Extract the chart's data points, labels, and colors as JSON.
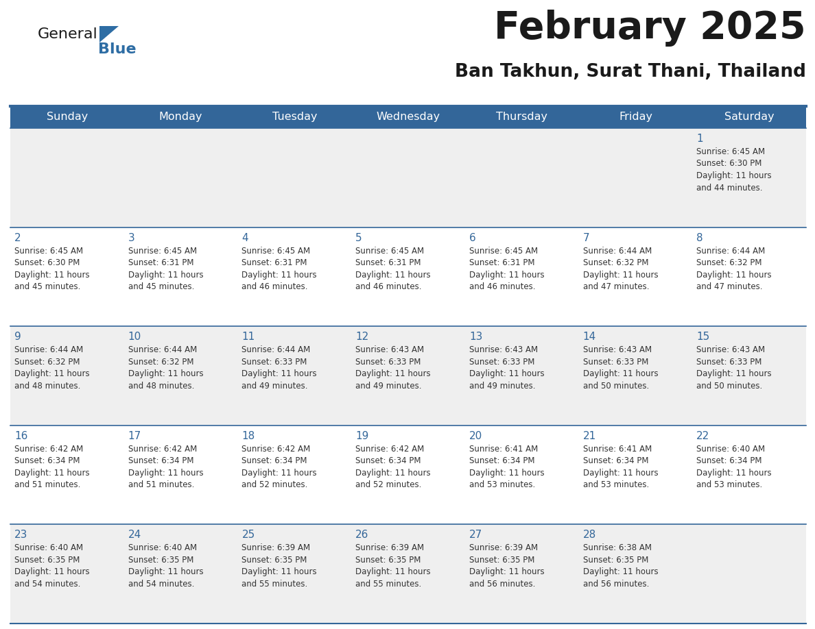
{
  "title": "February 2025",
  "subtitle": "Ban Takhun, Surat Thani, Thailand",
  "header_bg": "#336699",
  "header_text_color": "#FFFFFF",
  "cell_bg_odd": "#EFEFEF",
  "cell_bg_even": "#FFFFFF",
  "title_color": "#1a1a1a",
  "subtitle_color": "#1a1a1a",
  "date_num_color": "#336699",
  "info_text_color": "#333333",
  "grid_line_color": "#336699",
  "days_of_week": [
    "Sunday",
    "Monday",
    "Tuesday",
    "Wednesday",
    "Thursday",
    "Friday",
    "Saturday"
  ],
  "calendar": [
    [
      null,
      null,
      null,
      null,
      null,
      null,
      1
    ],
    [
      2,
      3,
      4,
      5,
      6,
      7,
      8
    ],
    [
      9,
      10,
      11,
      12,
      13,
      14,
      15
    ],
    [
      16,
      17,
      18,
      19,
      20,
      21,
      22
    ],
    [
      23,
      24,
      25,
      26,
      27,
      28,
      null
    ]
  ],
  "cell_data": {
    "1": {
      "sunrise": "6:45 AM",
      "sunset": "6:30 PM",
      "daylight": "11 hours and 44 minutes."
    },
    "2": {
      "sunrise": "6:45 AM",
      "sunset": "6:30 PM",
      "daylight": "11 hours and 45 minutes."
    },
    "3": {
      "sunrise": "6:45 AM",
      "sunset": "6:31 PM",
      "daylight": "11 hours and 45 minutes."
    },
    "4": {
      "sunrise": "6:45 AM",
      "sunset": "6:31 PM",
      "daylight": "11 hours and 46 minutes."
    },
    "5": {
      "sunrise": "6:45 AM",
      "sunset": "6:31 PM",
      "daylight": "11 hours and 46 minutes."
    },
    "6": {
      "sunrise": "6:45 AM",
      "sunset": "6:31 PM",
      "daylight": "11 hours and 46 minutes."
    },
    "7": {
      "sunrise": "6:44 AM",
      "sunset": "6:32 PM",
      "daylight": "11 hours and 47 minutes."
    },
    "8": {
      "sunrise": "6:44 AM",
      "sunset": "6:32 PM",
      "daylight": "11 hours and 47 minutes."
    },
    "9": {
      "sunrise": "6:44 AM",
      "sunset": "6:32 PM",
      "daylight": "11 hours and 48 minutes."
    },
    "10": {
      "sunrise": "6:44 AM",
      "sunset": "6:32 PM",
      "daylight": "11 hours and 48 minutes."
    },
    "11": {
      "sunrise": "6:44 AM",
      "sunset": "6:33 PM",
      "daylight": "11 hours and 49 minutes."
    },
    "12": {
      "sunrise": "6:43 AM",
      "sunset": "6:33 PM",
      "daylight": "11 hours and 49 minutes."
    },
    "13": {
      "sunrise": "6:43 AM",
      "sunset": "6:33 PM",
      "daylight": "11 hours and 49 minutes."
    },
    "14": {
      "sunrise": "6:43 AM",
      "sunset": "6:33 PM",
      "daylight": "11 hours and 50 minutes."
    },
    "15": {
      "sunrise": "6:43 AM",
      "sunset": "6:33 PM",
      "daylight": "11 hours and 50 minutes."
    },
    "16": {
      "sunrise": "6:42 AM",
      "sunset": "6:34 PM",
      "daylight": "11 hours and 51 minutes."
    },
    "17": {
      "sunrise": "6:42 AM",
      "sunset": "6:34 PM",
      "daylight": "11 hours and 51 minutes."
    },
    "18": {
      "sunrise": "6:42 AM",
      "sunset": "6:34 PM",
      "daylight": "11 hours and 52 minutes."
    },
    "19": {
      "sunrise": "6:42 AM",
      "sunset": "6:34 PM",
      "daylight": "11 hours and 52 minutes."
    },
    "20": {
      "sunrise": "6:41 AM",
      "sunset": "6:34 PM",
      "daylight": "11 hours and 53 minutes."
    },
    "21": {
      "sunrise": "6:41 AM",
      "sunset": "6:34 PM",
      "daylight": "11 hours and 53 minutes."
    },
    "22": {
      "sunrise": "6:40 AM",
      "sunset": "6:34 PM",
      "daylight": "11 hours and 53 minutes."
    },
    "23": {
      "sunrise": "6:40 AM",
      "sunset": "6:35 PM",
      "daylight": "11 hours and 54 minutes."
    },
    "24": {
      "sunrise": "6:40 AM",
      "sunset": "6:35 PM",
      "daylight": "11 hours and 54 minutes."
    },
    "25": {
      "sunrise": "6:39 AM",
      "sunset": "6:35 PM",
      "daylight": "11 hours and 55 minutes."
    },
    "26": {
      "sunrise": "6:39 AM",
      "sunset": "6:35 PM",
      "daylight": "11 hours and 55 minutes."
    },
    "27": {
      "sunrise": "6:39 AM",
      "sunset": "6:35 PM",
      "daylight": "11 hours and 56 minutes."
    },
    "28": {
      "sunrise": "6:38 AM",
      "sunset": "6:35 PM",
      "daylight": "11 hours and 56 minutes."
    }
  },
  "logo_general_color": "#1a1a1a",
  "logo_blue_color": "#2E6DA4",
  "logo_triangle_color": "#2E6DA4"
}
